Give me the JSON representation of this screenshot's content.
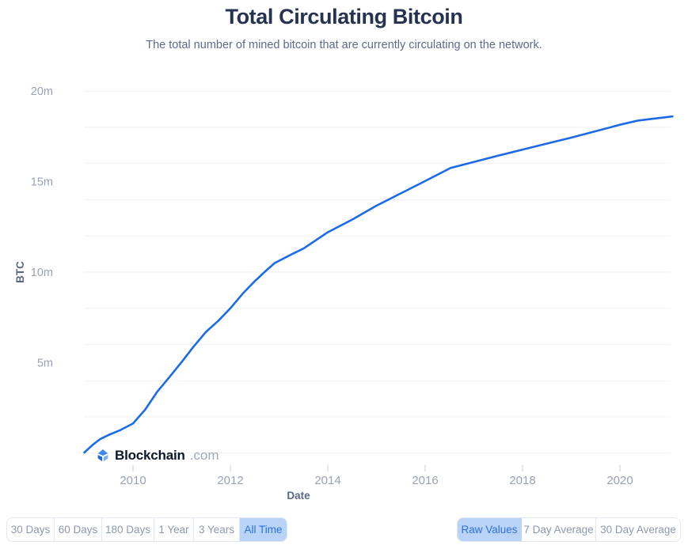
{
  "header": {
    "title": "Total Circulating Bitcoin",
    "subtitle": "The total number of mined bitcoin that are currently circulating on the network."
  },
  "watermark": {
    "brand": "Blockchain",
    "suffix": ".com",
    "icon": "blockchain-cube-icon"
  },
  "chart_data": {
    "type": "line",
    "title": "Total Circulating Bitcoin",
    "xlabel": "Date",
    "ylabel": "BTC",
    "xlim": [
      2009.0,
      2021.3
    ],
    "ylim": [
      0,
      20
    ],
    "grid": {
      "orientation": "horizontal",
      "step_millions": 2,
      "values": [
        0,
        2,
        4,
        6,
        8,
        10,
        12,
        14,
        16,
        18,
        20
      ]
    },
    "x_ticks": [
      {
        "value": 2010,
        "label": "2010"
      },
      {
        "value": 2012,
        "label": "2012"
      },
      {
        "value": 2014,
        "label": "2014"
      },
      {
        "value": 2016,
        "label": "2016"
      },
      {
        "value": 2018,
        "label": "2018"
      },
      {
        "value": 2020,
        "label": "2020"
      }
    ],
    "y_ticks": [
      {
        "value": 5,
        "label": "5m"
      },
      {
        "value": 10,
        "label": "10m"
      },
      {
        "value": 15,
        "label": "15m"
      },
      {
        "value": 20,
        "label": "20m"
      }
    ],
    "legend": "none",
    "series": [
      {
        "name": "Total Circulating Bitcoin",
        "unit": "millions of BTC",
        "color": "#1b6be8",
        "points": [
          [
            2009.0,
            0.03
          ],
          [
            2009.17,
            0.45
          ],
          [
            2009.33,
            0.78
          ],
          [
            2009.5,
            1.0
          ],
          [
            2009.75,
            1.28
          ],
          [
            2010.0,
            1.63
          ],
          [
            2010.25,
            2.4
          ],
          [
            2010.5,
            3.4
          ],
          [
            2010.75,
            4.2
          ],
          [
            2011.0,
            5.03
          ],
          [
            2011.25,
            5.9
          ],
          [
            2011.5,
            6.7
          ],
          [
            2011.75,
            7.3
          ],
          [
            2012.0,
            8.0
          ],
          [
            2012.25,
            8.8
          ],
          [
            2012.5,
            9.5
          ],
          [
            2012.7,
            10.0
          ],
          [
            2012.91,
            10.5
          ],
          [
            2013.25,
            10.97
          ],
          [
            2013.5,
            11.3
          ],
          [
            2014.0,
            12.2
          ],
          [
            2014.5,
            12.9
          ],
          [
            2015.0,
            13.67
          ],
          [
            2015.5,
            14.35
          ],
          [
            2016.0,
            15.03
          ],
          [
            2016.52,
            15.75
          ],
          [
            2017.0,
            16.08
          ],
          [
            2017.5,
            16.43
          ],
          [
            2018.0,
            16.77
          ],
          [
            2018.5,
            17.1
          ],
          [
            2019.0,
            17.43
          ],
          [
            2019.5,
            17.78
          ],
          [
            2020.0,
            18.14
          ],
          [
            2020.37,
            18.37
          ],
          [
            2020.7,
            18.48
          ],
          [
            2021.08,
            18.6
          ]
        ]
      }
    ]
  },
  "toolbars": {
    "range": [
      {
        "label": "30 Days",
        "selected": false
      },
      {
        "label": "60 Days",
        "selected": false
      },
      {
        "label": "180 Days",
        "selected": false
      },
      {
        "label": "1 Year",
        "selected": false
      },
      {
        "label": "3 Years",
        "selected": false
      },
      {
        "label": "All Time",
        "selected": true
      }
    ],
    "mode": [
      {
        "label": "Raw Values",
        "selected": true
      },
      {
        "label": "7 Day Average",
        "selected": false
      },
      {
        "label": "30 Day Average",
        "selected": false
      }
    ]
  },
  "colors": {
    "line": "#1b6be8",
    "grid": "#f0f1f4",
    "tick_mark": "#c9cfda",
    "tick_text": "#99a2b6",
    "axis_title": "#5a6781",
    "title": "#253351",
    "subtitle": "#5d6b8c",
    "selected_bg": "#b9d4f6",
    "selected_text": "#2b71e4",
    "button_text": "#8e99ad",
    "button_border": "#e3e6ec"
  }
}
